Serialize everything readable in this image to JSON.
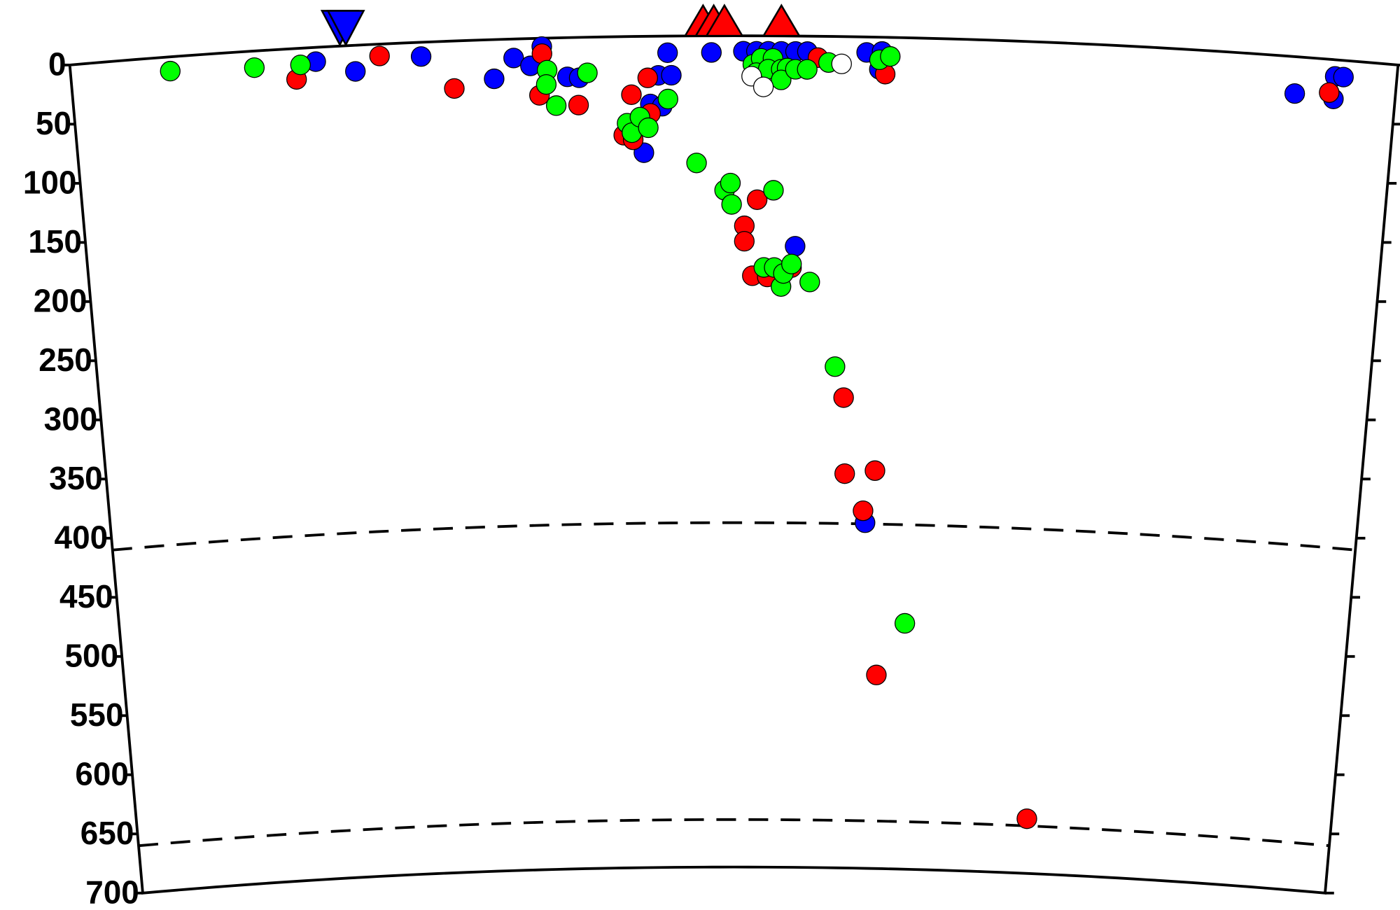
{
  "chart_data": {
    "type": "scatter",
    "xlim": [
      0,
      1120
    ],
    "ylim": [
      0,
      700
    ],
    "yticks": [
      0,
      50,
      100,
      150,
      200,
      250,
      300,
      350,
      400,
      450,
      500,
      550,
      600,
      650,
      700
    ],
    "reference_depths": [
      410,
      660
    ],
    "series": [
      {
        "color": "#0000ff",
        "x": [
          207,
          240,
          296,
          357,
          374,
          388,
          398,
          419,
          429,
          496,
          507,
          504,
          489,
          499,
          483,
          541,
          568,
          579,
          589,
          600,
          612,
          622,
          613,
          672,
          685,
          683,
          678,
          1035,
          1068,
          1075,
          1068
        ],
        "values": [
          12,
          22,
          12,
          33,
          16,
          23,
          7,
          33,
          34,
          33,
          33,
          14,
          57,
          59,
          98,
          14,
          13,
          13,
          13,
          13,
          13,
          13,
          177,
          13,
          12,
          27,
          409,
          31,
          14,
          14,
          33
        ]
      },
      {
        "color": "#ff0000",
        "x": [
          190,
          261,
          323,
          398,
          395,
          428,
          473,
          487,
          489,
          466,
          474,
          580,
          569,
          569,
          576,
          589,
          610,
          631,
          688,
          657,
          659,
          686,
          676,
          691,
          835,
          1064
        ],
        "values": [
          26,
          10,
          40,
          13,
          48,
          57,
          49,
          35,
          65,
          83,
          87,
          138,
          160,
          173,
          202,
          203,
          195,
          18,
          31,
          304,
          368,
          365,
          399,
          537,
          654,
          28
        ]
      },
      {
        "color": "#00ff00",
        "x": [
          84,
          155,
          194,
          402,
          401,
          409,
          436,
          504,
          469,
          473,
          480,
          487,
          528,
          552,
          557,
          558,
          594,
          586,
          595,
          601,
          603,
          610,
          626,
          576,
          583,
          593,
          579,
          589,
          600,
          605,
          600,
          612,
          622,
          640,
          683,
          692,
          649,
          716
        ],
        "values": [
          12,
          14,
          14,
          27,
          39,
          57,
          30,
          53,
          73,
          81,
          68,
          77,
          107,
          130,
          124,
          142,
          130,
          195,
          195,
          211,
          200,
          192,
          207,
          24,
          19,
          19,
          31,
          28,
          28,
          27,
          37,
          28,
          28,
          22,
          19,
          16,
          278,
          493
        ]
      },
      {
        "color": "#ffffff",
        "x": [
          575,
          585,
          651
        ],
        "values": [
          34,
          43,
          23
        ]
      }
    ],
    "volcanoes": {
      "color": "#ff0000",
      "x": [
        534,
        543,
        552,
        600
      ]
    },
    "stations": {
      "color": "#0000ff",
      "x": [
        228,
        233
      ]
    }
  }
}
